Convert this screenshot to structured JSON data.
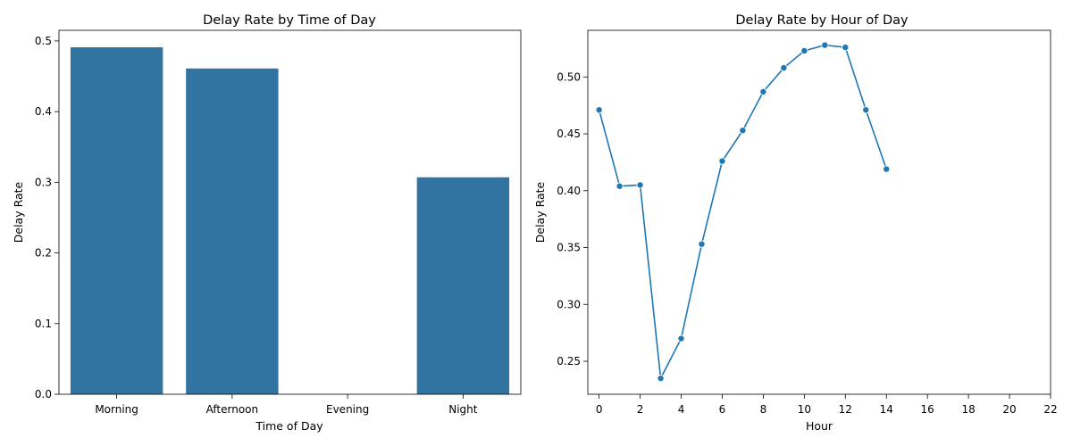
{
  "chart_data": [
    {
      "type": "bar",
      "title": "Delay Rate by Time of Day",
      "xlabel": "Time of Day",
      "ylabel": "Delay Rate",
      "categories": [
        "Morning",
        "Afternoon",
        "Evening",
        "Night"
      ],
      "values": [
        0.491,
        0.461,
        0,
        0.307
      ],
      "ylim": [
        0,
        0.515
      ],
      "yticks": [
        0.0,
        0.1,
        0.2,
        0.3,
        0.4,
        0.5
      ],
      "ytick_labels": [
        "0.0",
        "0.1",
        "0.2",
        "0.3",
        "0.4",
        "0.5"
      ],
      "color": "#3274a1",
      "grid": false
    },
    {
      "type": "line",
      "title": "Delay Rate by Hour of Day",
      "xlabel": "Hour",
      "ylabel": "Delay Rate",
      "x": [
        0,
        1,
        2,
        3,
        4,
        5,
        6,
        7,
        8,
        9,
        10,
        11,
        12,
        13,
        14
      ],
      "y": [
        0.471,
        0.404,
        0.405,
        0.235,
        0.27,
        0.353,
        0.426,
        0.453,
        0.487,
        0.508,
        0.523,
        0.528,
        0.526,
        0.471,
        0.419
      ],
      "xlim": [
        -0.55,
        22
      ],
      "ylim": [
        0.221,
        0.541
      ],
      "xticks": [
        0,
        2,
        4,
        6,
        8,
        10,
        12,
        14,
        16,
        18,
        20,
        22
      ],
      "xtick_labels": [
        "0",
        "2",
        "4",
        "6",
        "8",
        "10",
        "12",
        "14",
        "16",
        "18",
        "20",
        "22"
      ],
      "yticks": [
        0.25,
        0.3,
        0.35,
        0.4,
        0.45,
        0.5
      ],
      "ytick_labels": [
        "0.25",
        "0.30",
        "0.35",
        "0.40",
        "0.45",
        "0.50"
      ],
      "color": "#1f77b4",
      "marker": "circle",
      "grid": false
    }
  ]
}
